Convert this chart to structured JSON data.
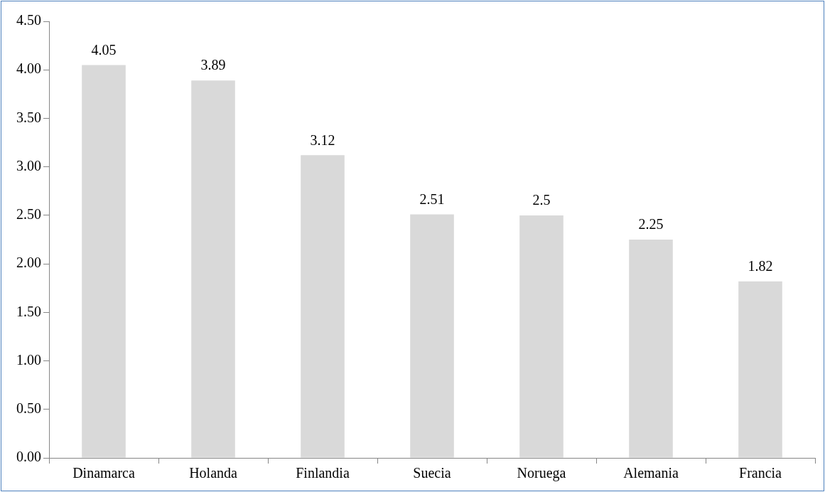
{
  "chart_data": {
    "type": "bar",
    "categories": [
      "Dinamarca",
      "Holanda",
      "Finlandia",
      "Suecia",
      "Noruega",
      "Alemania",
      "Francia"
    ],
    "values": [
      4.05,
      3.89,
      3.12,
      2.51,
      2.5,
      2.25,
      1.82
    ],
    "color": "#d9d9d9",
    "ylim": [
      0,
      4.5
    ],
    "yticks": [
      {
        "value": 0,
        "label": "0.00"
      },
      {
        "value": 0.5,
        "label": "0.50"
      },
      {
        "value": 1,
        "label": "1.00"
      },
      {
        "value": 1.5,
        "label": "1.50"
      },
      {
        "value": 2,
        "label": "2.00"
      },
      {
        "value": 2.5,
        "label": "2.50"
      },
      {
        "value": 3,
        "label": "3.00"
      },
      {
        "value": 3.5,
        "label": "3.50"
      },
      {
        "value": 4,
        "label": "4.00"
      },
      {
        "value": 4.5,
        "label": "4.50"
      }
    ],
    "data_labels": true,
    "grid": false,
    "legend": false
  }
}
